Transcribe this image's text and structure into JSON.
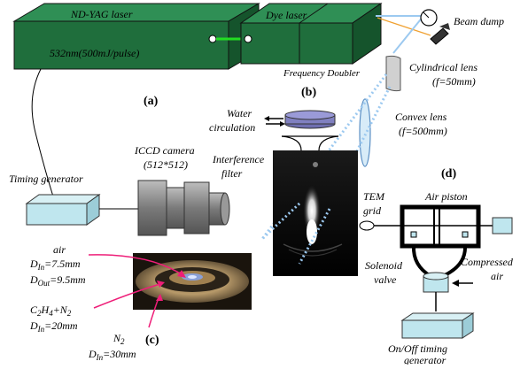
{
  "nd_yag_laser": {
    "title": "ND-YAG laser",
    "spec": "532nm(500mJ/pulse)"
  },
  "dye_laser": {
    "title": "Dye laser",
    "sub": "Frequency Doubler"
  },
  "beam_dump": {
    "label": "Beam dump"
  },
  "cylindrical_lens": {
    "line1": "Cylindrical lens",
    "line2": "(f=50mm)"
  },
  "convex_lens": {
    "line1": "Convex lens",
    "line2": "(f=500mm)"
  },
  "water_circulation": {
    "line1": "Water",
    "line2": "circulation"
  },
  "iccd_camera": {
    "line1": "ICCD camera",
    "line2": "(512*512)"
  },
  "interference_filter": {
    "line1": "Interference",
    "line2": "filter"
  },
  "timing_generator": {
    "label": "Timing generator"
  },
  "panel_labels": {
    "a": "(a)",
    "b": "(b)",
    "c": "(c)",
    "d": "(d)"
  },
  "burner": {
    "air": "air",
    "c2h4": "C",
    "c2h4_sub": "2",
    "c2h4_rest": "H",
    "c2h4_sub2": "4",
    "c2h4_plus": "+N",
    "c2h4_sub3": "2",
    "d_in_1": "=7.5mm",
    "d_out_1": "=9.5mm",
    "d_in_2": "=20mm",
    "n2": "N",
    "n2_sub": "2",
    "d_in_3": "=30mm",
    "d": "D",
    "in": "In",
    "out": "Out"
  },
  "piston": {
    "tem_grid_1": "TEM",
    "tem_grid_2": "grid",
    "air_piston": "Air piston",
    "solenoid_1": "Solenoid",
    "solenoid_2": "valve",
    "compressed_1": "Compressed",
    "compressed_2": "air",
    "onoff_1": "On/Off timing",
    "onoff_2": "generator"
  },
  "colors": {
    "laser_top": "#2f8f55",
    "laser_front": "#1f6e3c",
    "laser_side": "#15542c",
    "beam_green": "#22dd22",
    "beam_dotted": "#9cc9f0",
    "beam_orange": "#f0a030",
    "cyan_box": "#bfe6ee",
    "gray_camera": "#888888",
    "lens_fill": "#d8ecf8"
  }
}
